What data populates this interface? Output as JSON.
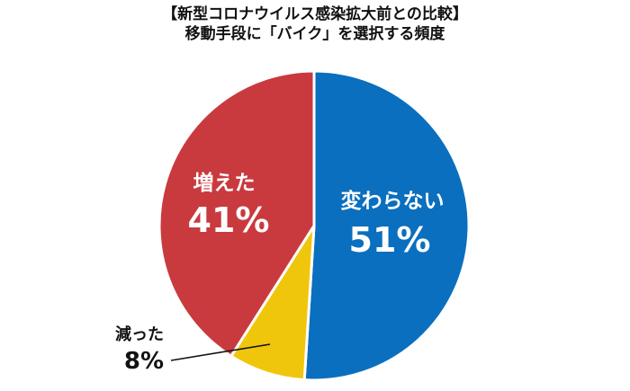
{
  "chart_data": {
    "type": "pie",
    "title": "【新型コロナウイルス感染拡大前との比較】",
    "subtitle": "移動手段に「バイク」を選択する頻度",
    "slices": [
      {
        "label": "変わらない",
        "value": 51,
        "value_label": "51%",
        "color": "#0a6fbe"
      },
      {
        "label": "減った",
        "value": 8,
        "value_label": "8%",
        "color": "#f0c60c"
      },
      {
        "label": "増えた",
        "value": 41,
        "value_label": "41%",
        "color": "#c93a3f"
      }
    ],
    "start": "12 o'clock",
    "direction": "clockwise"
  }
}
